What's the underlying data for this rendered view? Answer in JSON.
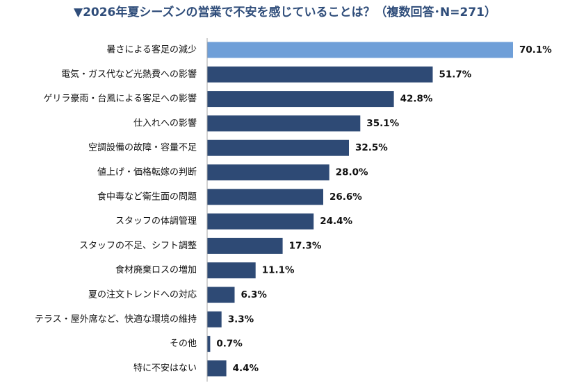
{
  "chart_data": {
    "type": "bar",
    "orientation": "horizontal",
    "title": "▼2026年夏シーズンの営業で不安を感じていることは？（複数回答･N=271）",
    "xlabel": "",
    "ylabel": "",
    "unit": "%",
    "xlim": [
      0,
      70.1
    ],
    "grid": false,
    "legend": "none",
    "categories": [
      "暑さによる客足の減少",
      "電気・ガス代など光熱費への影響",
      "ゲリラ豪雨・台風による客足への影響",
      "仕入れへの影響",
      "空調設備の故障・容量不足",
      "値上げ・価格転嫁の判断",
      "食中毒など衛生面の問題",
      "スタッフの体調管理",
      "スタッフの不足、シフト調整",
      "食材廃棄ロスの増加",
      "夏の注文トレンドへの対応",
      "テラス・屋外席など、快適な環境の維持",
      "その他",
      "特に不安はない"
    ],
    "values": [
      70.1,
      51.7,
      42.8,
      35.1,
      32.5,
      28.0,
      26.6,
      24.4,
      17.3,
      11.1,
      6.3,
      3.3,
      0.7,
      4.4
    ],
    "value_labels": [
      "70.1%",
      "51.7%",
      "42.8%",
      "35.1%",
      "32.5%",
      "28.0%",
      "26.6%",
      "24.4%",
      "17.3%",
      "11.1%",
      "6.3%",
      "3.3%",
      "0.7%",
      "4.4%"
    ],
    "highlight_index": 0,
    "colors": {
      "bar": "#2e4a75",
      "highlight": "#6f9fd8",
      "axis": "#a6a6a6",
      "title": "#2f4d7a",
      "text": "#111111"
    }
  }
}
